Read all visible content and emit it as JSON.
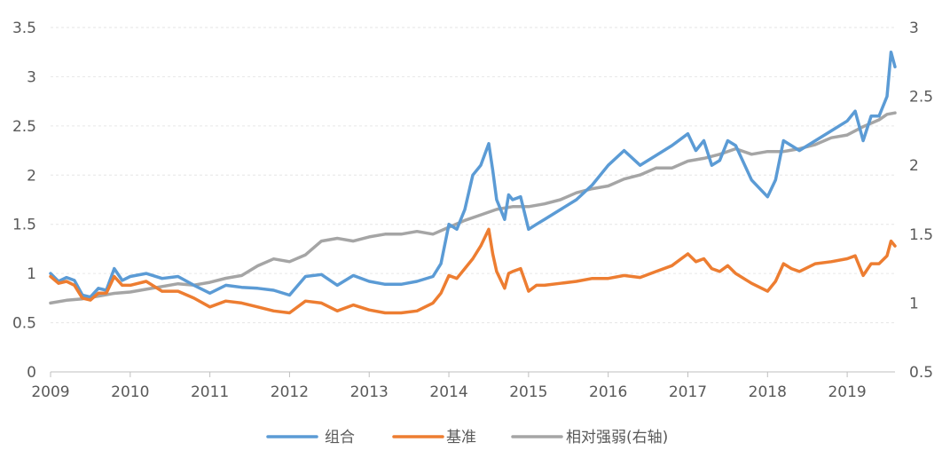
{
  "chart_data": {
    "type": "line",
    "title": "",
    "xlabel": "",
    "ylabel": "",
    "x_tick_labels": [
      "2009",
      "2010",
      "2011",
      "2012",
      "2013",
      "2014",
      "2015",
      "2016",
      "2017",
      "2018",
      "2019"
    ],
    "xlim": [
      2009.0,
      2019.6
    ],
    "ylim_left": [
      0,
      3.5
    ],
    "yticks_left": [
      "0",
      "0.5",
      "1",
      "1.5",
      "2",
      "2.5",
      "3",
      "3.5"
    ],
    "ylim_right": [
      0.5,
      3
    ],
    "yticks_right": [
      "0.5",
      "1",
      "1.5",
      "2",
      "2.5",
      "3"
    ],
    "grid": true,
    "legend_position": "bottom-center",
    "series": [
      {
        "name": "组合",
        "axis": "left",
        "color": "#5B9BD5",
        "x": [
          2009.0,
          2009.1,
          2009.2,
          2009.3,
          2009.4,
          2009.5,
          2009.6,
          2009.7,
          2009.8,
          2009.9,
          2010.0,
          2010.2,
          2010.4,
          2010.6,
          2010.8,
          2011.0,
          2011.2,
          2011.4,
          2011.6,
          2011.8,
          2012.0,
          2012.2,
          2012.4,
          2012.6,
          2012.8,
          2013.0,
          2013.2,
          2013.4,
          2013.6,
          2013.8,
          2013.9,
          2014.0,
          2014.1,
          2014.2,
          2014.3,
          2014.4,
          2014.5,
          2014.55,
          2014.6,
          2014.7,
          2014.75,
          2014.8,
          2014.9,
          2015.0,
          2015.1,
          2015.2,
          2015.4,
          2015.6,
          2015.8,
          2016.0,
          2016.2,
          2016.4,
          2016.6,
          2016.8,
          2017.0,
          2017.1,
          2017.2,
          2017.3,
          2017.4,
          2017.5,
          2017.6,
          2017.8,
          2018.0,
          2018.1,
          2018.2,
          2018.3,
          2018.4,
          2018.6,
          2018.8,
          2019.0,
          2019.1,
          2019.2,
          2019.3,
          2019.4,
          2019.5,
          2019.55,
          2019.6
        ],
        "y": [
          1.0,
          0.92,
          0.96,
          0.93,
          0.78,
          0.76,
          0.85,
          0.83,
          1.05,
          0.93,
          0.97,
          1.0,
          0.95,
          0.97,
          0.88,
          0.8,
          0.88,
          0.86,
          0.85,
          0.83,
          0.78,
          0.97,
          0.99,
          0.88,
          0.98,
          0.92,
          0.89,
          0.89,
          0.92,
          0.97,
          1.1,
          1.5,
          1.45,
          1.65,
          2.0,
          2.1,
          2.32,
          2.05,
          1.75,
          1.55,
          1.8,
          1.75,
          1.78,
          1.45,
          1.5,
          1.55,
          1.65,
          1.75,
          1.9,
          2.1,
          2.25,
          2.1,
          2.2,
          2.3,
          2.42,
          2.25,
          2.35,
          2.1,
          2.15,
          2.35,
          2.3,
          1.95,
          1.78,
          1.95,
          2.35,
          2.3,
          2.25,
          2.35,
          2.45,
          2.55,
          2.65,
          2.35,
          2.6,
          2.6,
          2.8,
          3.25,
          3.1
        ]
      },
      {
        "name": "基准",
        "axis": "left",
        "color": "#ED7D31",
        "x": [
          2009.0,
          2009.1,
          2009.2,
          2009.3,
          2009.4,
          2009.5,
          2009.6,
          2009.7,
          2009.8,
          2009.9,
          2010.0,
          2010.2,
          2010.4,
          2010.6,
          2010.8,
          2011.0,
          2011.2,
          2011.4,
          2011.6,
          2011.8,
          2012.0,
          2012.2,
          2012.4,
          2012.6,
          2012.8,
          2013.0,
          2013.2,
          2013.4,
          2013.6,
          2013.8,
          2013.9,
          2014.0,
          2014.1,
          2014.2,
          2014.3,
          2014.4,
          2014.5,
          2014.55,
          2014.6,
          2014.7,
          2014.75,
          2014.8,
          2014.9,
          2015.0,
          2015.1,
          2015.2,
          2015.4,
          2015.6,
          2015.8,
          2016.0,
          2016.2,
          2016.4,
          2016.6,
          2016.8,
          2017.0,
          2017.1,
          2017.2,
          2017.3,
          2017.4,
          2017.5,
          2017.6,
          2017.8,
          2018.0,
          2018.1,
          2018.2,
          2018.3,
          2018.4,
          2018.6,
          2018.8,
          2019.0,
          2019.1,
          2019.2,
          2019.3,
          2019.4,
          2019.5,
          2019.55,
          2019.6
        ],
        "y": [
          0.97,
          0.9,
          0.92,
          0.88,
          0.75,
          0.73,
          0.8,
          0.8,
          0.97,
          0.88,
          0.88,
          0.92,
          0.82,
          0.82,
          0.75,
          0.66,
          0.72,
          0.7,
          0.66,
          0.62,
          0.6,
          0.72,
          0.7,
          0.62,
          0.68,
          0.63,
          0.6,
          0.6,
          0.62,
          0.7,
          0.8,
          0.98,
          0.95,
          1.05,
          1.15,
          1.28,
          1.45,
          1.2,
          1.02,
          0.85,
          1.0,
          1.02,
          1.05,
          0.82,
          0.88,
          0.88,
          0.9,
          0.92,
          0.95,
          0.95,
          0.98,
          0.96,
          1.02,
          1.08,
          1.2,
          1.12,
          1.15,
          1.05,
          1.02,
          1.08,
          1.0,
          0.9,
          0.82,
          0.92,
          1.1,
          1.05,
          1.02,
          1.1,
          1.12,
          1.15,
          1.18,
          0.98,
          1.1,
          1.1,
          1.18,
          1.33,
          1.28
        ]
      },
      {
        "name": "相对强弱(右轴)",
        "axis": "right",
        "color": "#A5A5A5",
        "x": [
          2009.0,
          2009.2,
          2009.4,
          2009.6,
          2009.8,
          2010.0,
          2010.2,
          2010.4,
          2010.6,
          2010.8,
          2011.0,
          2011.2,
          2011.4,
          2011.6,
          2011.8,
          2012.0,
          2012.2,
          2012.4,
          2012.6,
          2012.8,
          2013.0,
          2013.2,
          2013.4,
          2013.6,
          2013.8,
          2014.0,
          2014.2,
          2014.4,
          2014.6,
          2014.8,
          2015.0,
          2015.2,
          2015.4,
          2015.6,
          2015.8,
          2016.0,
          2016.2,
          2016.4,
          2016.6,
          2016.8,
          2017.0,
          2017.2,
          2017.4,
          2017.6,
          2017.8,
          2018.0,
          2018.2,
          2018.4,
          2018.6,
          2018.8,
          2019.0,
          2019.2,
          2019.4,
          2019.5,
          2019.6
        ],
        "y": [
          1.0,
          1.02,
          1.03,
          1.05,
          1.07,
          1.08,
          1.1,
          1.12,
          1.14,
          1.13,
          1.15,
          1.18,
          1.2,
          1.27,
          1.32,
          1.3,
          1.35,
          1.45,
          1.47,
          1.45,
          1.48,
          1.5,
          1.5,
          1.52,
          1.5,
          1.55,
          1.6,
          1.64,
          1.68,
          1.7,
          1.7,
          1.72,
          1.75,
          1.8,
          1.83,
          1.85,
          1.9,
          1.93,
          1.98,
          1.98,
          2.03,
          2.05,
          2.08,
          2.12,
          2.08,
          2.1,
          2.1,
          2.12,
          2.15,
          2.2,
          2.22,
          2.28,
          2.33,
          2.37,
          2.38
        ]
      }
    ]
  }
}
